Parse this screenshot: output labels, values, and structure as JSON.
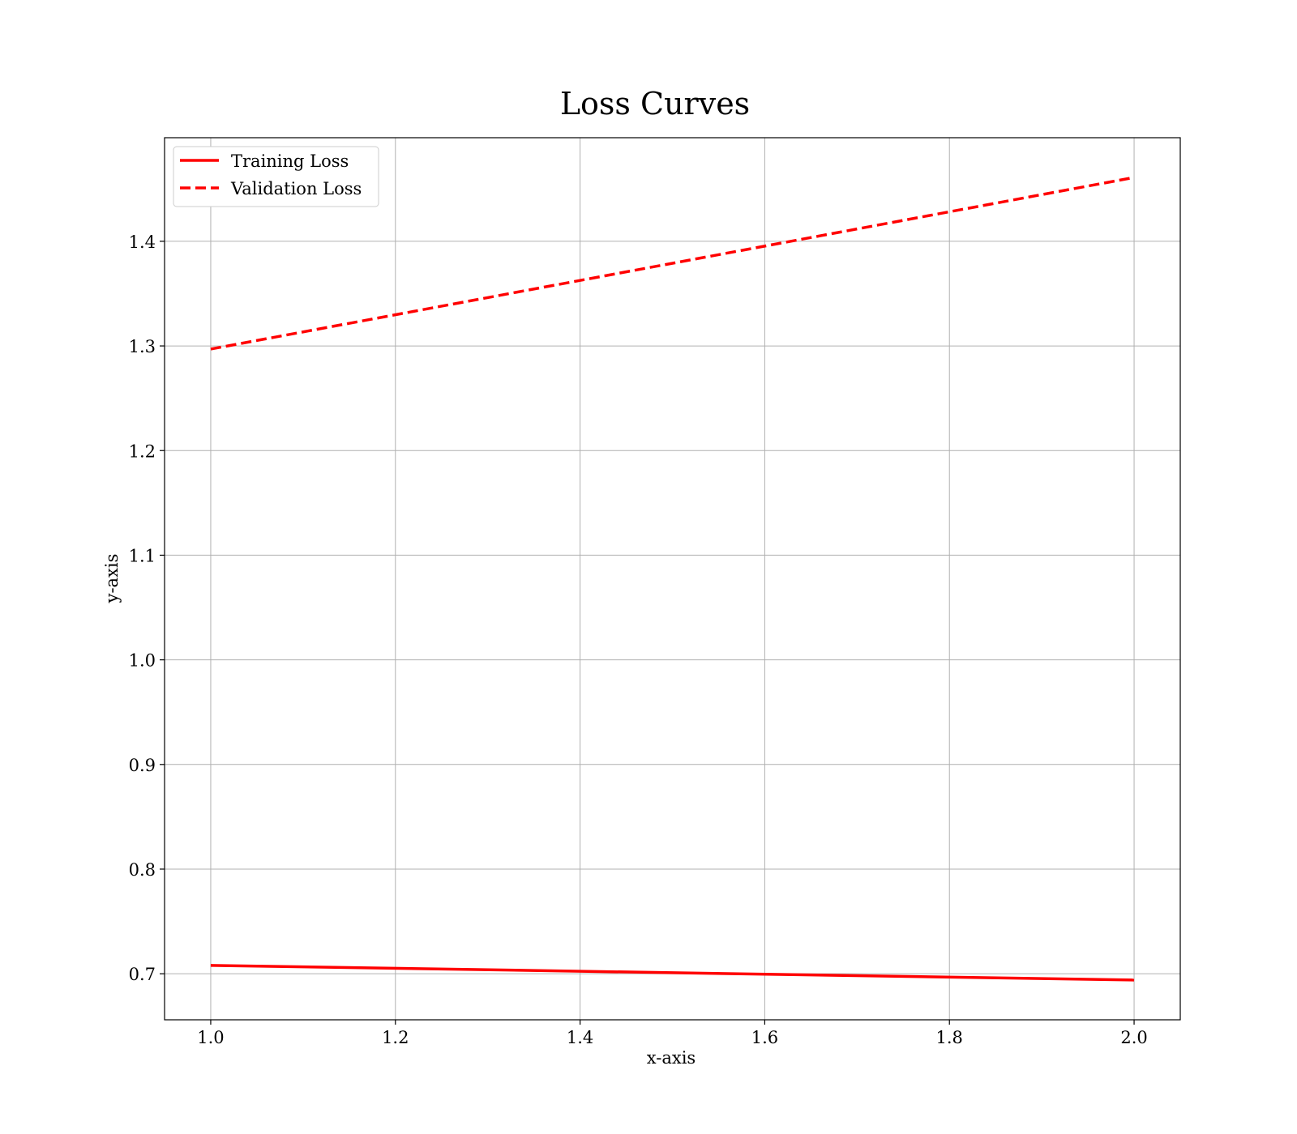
{
  "chart_data": {
    "type": "line",
    "title": "Loss Curves",
    "xlabel": "x-axis",
    "ylabel": "y-axis",
    "xlim": [
      0.95,
      2.05
    ],
    "ylim": [
      0.656,
      1.499
    ],
    "xticks": [
      1.0,
      1.2,
      1.4,
      1.6,
      1.8,
      2.0
    ],
    "yticks": [
      0.7,
      0.8,
      0.9,
      1.0,
      1.1,
      1.2,
      1.3,
      1.4
    ],
    "xtick_labels": [
      "1.0",
      "1.2",
      "1.4",
      "1.6",
      "1.8",
      "2.0"
    ],
    "ytick_labels": [
      "0.7",
      "0.8",
      "0.9",
      "1.0",
      "1.1",
      "1.2",
      "1.3",
      "1.4"
    ],
    "grid": true,
    "legend_position": "top-left",
    "series": [
      {
        "name": "Training Loss",
        "x": [
          1.0,
          2.0
        ],
        "y": [
          0.708,
          0.694
        ],
        "color": "#ff0000",
        "style": "solid"
      },
      {
        "name": "Validation Loss",
        "x": [
          1.0,
          2.0
        ],
        "y": [
          1.297,
          1.461
        ],
        "color": "#ff0000",
        "style": "dashed"
      }
    ]
  }
}
